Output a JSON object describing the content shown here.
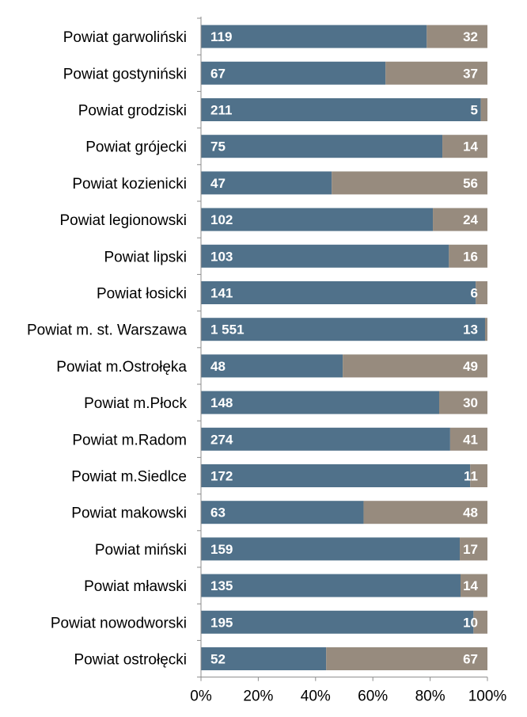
{
  "chart_data": {
    "type": "bar",
    "orientation": "horizontal",
    "stacked": "percent",
    "categories": [
      "Powiat garwoliński",
      "Powiat gostyniński",
      "Powiat grodziski",
      "Powiat grójecki",
      "Powiat kozienicki",
      "Powiat legionowski",
      "Powiat lipski",
      "Powiat łosicki",
      "Powiat m. st. Warszawa",
      "Powiat m.Ostrołęka",
      "Powiat m.Płock",
      "Powiat m.Radom",
      "Powiat m.Siedlce",
      "Powiat makowski",
      "Powiat miński",
      "Powiat mławski",
      "Powiat nowodworski",
      "Powiat ostrołęcki"
    ],
    "series": [
      {
        "name": "series-1",
        "color": "#50718a",
        "values": [
          119,
          67,
          211,
          75,
          47,
          102,
          103,
          141,
          1551,
          48,
          148,
          274,
          172,
          63,
          159,
          135,
          195,
          52
        ],
        "labels": [
          "119",
          "67",
          "211",
          "75",
          "47",
          "102",
          "103",
          "141",
          "1 551",
          "48",
          "148",
          "274",
          "172",
          "63",
          "159",
          "135",
          "195",
          "52"
        ]
      },
      {
        "name": "series-2",
        "color": "#978b7e",
        "values": [
          32,
          37,
          5,
          14,
          56,
          24,
          16,
          6,
          13,
          49,
          30,
          41,
          11,
          48,
          17,
          14,
          10,
          67
        ],
        "labels": [
          "32",
          "37",
          "5",
          "14",
          "56",
          "24",
          "16",
          "6",
          "13",
          "49",
          "30",
          "41",
          "11",
          "48",
          "17",
          "14",
          "10",
          "67"
        ]
      }
    ],
    "xlim": [
      0,
      100
    ],
    "xticks": [
      "0%",
      "20%",
      "40%",
      "60%",
      "80%",
      "100%"
    ],
    "title": "",
    "xlabel": "",
    "ylabel": "",
    "legend": "none"
  }
}
